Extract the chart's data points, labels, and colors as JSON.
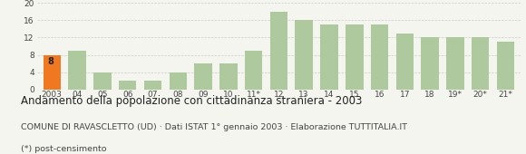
{
  "categories": [
    "2003",
    "04",
    "05",
    "06",
    "07",
    "08",
    "09",
    "10",
    "11*",
    "12",
    "13",
    "14",
    "15",
    "16",
    "17",
    "18",
    "19*",
    "20*",
    "21*"
  ],
  "values": [
    8,
    9,
    4,
    2,
    2,
    4,
    6,
    6,
    9,
    18,
    16,
    15,
    15,
    15,
    13,
    12,
    12,
    12,
    11
  ],
  "bar_color_base": "#afc99e",
  "bar_color_highlight": "#f07820",
  "highlight_index": 0,
  "highlight_label": "8",
  "title": "Andamento della popolazione con cittadinanza straniera - 2003",
  "subtitle": "COMUNE DI RAVASCLETTO (UD) · Dati ISTAT 1° gennaio 2003 · Elaborazione TUTTITALIA.IT",
  "footnote": "(*) post-censimento",
  "ylim": [
    0,
    20
  ],
  "yticks": [
    0,
    4,
    8,
    12,
    16,
    20
  ],
  "background_color": "#f5f5f0",
  "grid_color": "#cccccc",
  "title_fontsize": 8.5,
  "subtitle_fontsize": 6.8,
  "footnote_fontsize": 6.8,
  "tick_fontsize": 6.5
}
